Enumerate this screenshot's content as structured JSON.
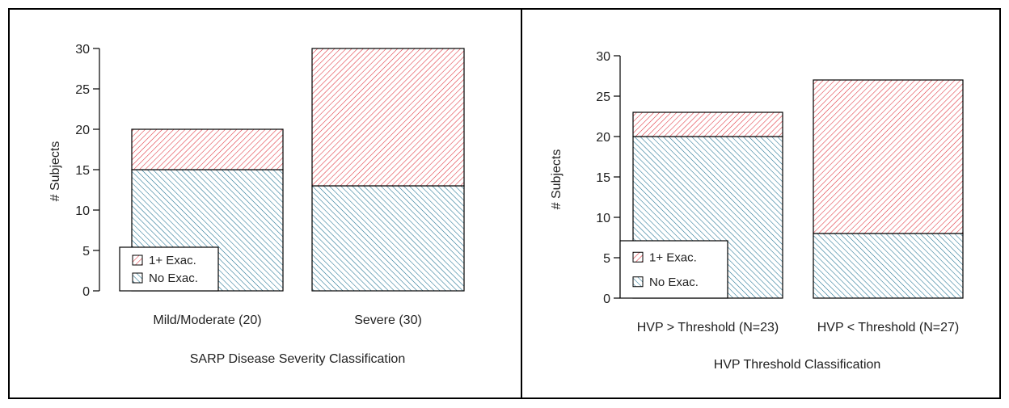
{
  "chart_data": [
    {
      "type": "bar",
      "stacked": true,
      "title": "",
      "xlabel": "SARP Disease Severity Classification",
      "ylabel": "# Subjects",
      "categories": [
        "Mild/Moderate (20)",
        "Severe (30)"
      ],
      "series": [
        {
          "name": "No Exac.",
          "values": [
            15,
            13
          ],
          "color": "#1b6f8f"
        },
        {
          "name": "1+ Exac.",
          "values": [
            5,
            17
          ],
          "color": "#e0303a"
        }
      ],
      "ylim": [
        0,
        30
      ],
      "yticks": [
        0,
        5,
        10,
        15,
        20,
        25,
        30
      ],
      "legend_position": "bottom-left",
      "legend_order": [
        "1+ Exac.",
        "No Exac."
      ]
    },
    {
      "type": "bar",
      "stacked": true,
      "title": "",
      "xlabel": "HVP Threshold Classification",
      "ylabel": "# Subjects",
      "categories": [
        "HVP > Threshold (N=23)",
        "HVP < Threshold (N=27)"
      ],
      "series": [
        {
          "name": "No Exac.",
          "values": [
            20,
            8
          ],
          "color": "#1b6f8f"
        },
        {
          "name": "1+ Exac.",
          "values": [
            3,
            19
          ],
          "color": "#e0303a"
        }
      ],
      "ylim": [
        0,
        30
      ],
      "yticks": [
        0,
        5,
        10,
        15,
        20,
        25,
        30
      ],
      "legend_position": "bottom-left",
      "legend_order": [
        "1+ Exac.",
        "No Exac."
      ]
    }
  ]
}
